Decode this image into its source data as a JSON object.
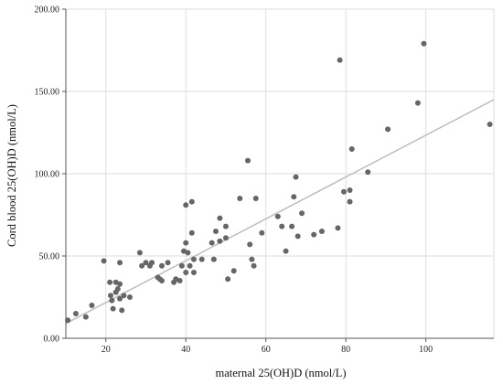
{
  "chart_data": {
    "type": "scatter",
    "xlabel": "maternal 25(OH)D (nmol/L)",
    "ylabel": "Cord blood 25(OH)D (nmol/L)",
    "xlim": [
      10,
      117
    ],
    "ylim": [
      0,
      200
    ],
    "x_ticks": [
      20,
      40,
      60,
      80,
      100
    ],
    "x_tick_labels": [
      "20",
      "40",
      "60",
      "80",
      "100"
    ],
    "y_ticks": [
      0,
      50,
      100,
      150,
      200
    ],
    "y_tick_labels": [
      "0.00",
      "50.00",
      "100.00",
      "150.00",
      "200.00"
    ],
    "grid": true,
    "point_color": "#666666",
    "fit_line_color": "#bdbdbd",
    "fit_line": {
      "x": [
        10,
        117
      ],
      "y": [
        9,
        145
      ]
    },
    "points": [
      {
        "x": 10.5,
        "y": 11
      },
      {
        "x": 12.5,
        "y": 15
      },
      {
        "x": 15,
        "y": 13
      },
      {
        "x": 16.5,
        "y": 20
      },
      {
        "x": 19.5,
        "y": 47
      },
      {
        "x": 21,
        "y": 34
      },
      {
        "x": 21.2,
        "y": 26
      },
      {
        "x": 21.5,
        "y": 23
      },
      {
        "x": 21.8,
        "y": 18
      },
      {
        "x": 22.5,
        "y": 34
      },
      {
        "x": 22.5,
        "y": 28
      },
      {
        "x": 23,
        "y": 30
      },
      {
        "x": 23.5,
        "y": 33
      },
      {
        "x": 23.5,
        "y": 46
      },
      {
        "x": 23.5,
        "y": 24
      },
      {
        "x": 24,
        "y": 17
      },
      {
        "x": 24.5,
        "y": 26
      },
      {
        "x": 26,
        "y": 25
      },
      {
        "x": 28.5,
        "y": 52
      },
      {
        "x": 29,
        "y": 44
      },
      {
        "x": 30,
        "y": 46
      },
      {
        "x": 31,
        "y": 44
      },
      {
        "x": 31.5,
        "y": 46
      },
      {
        "x": 33,
        "y": 37
      },
      {
        "x": 33.5,
        "y": 36
      },
      {
        "x": 34,
        "y": 35
      },
      {
        "x": 34,
        "y": 44
      },
      {
        "x": 35.5,
        "y": 46
      },
      {
        "x": 37,
        "y": 34
      },
      {
        "x": 37.5,
        "y": 36
      },
      {
        "x": 38.5,
        "y": 35
      },
      {
        "x": 39,
        "y": 44
      },
      {
        "x": 39.5,
        "y": 53
      },
      {
        "x": 40,
        "y": 81
      },
      {
        "x": 40,
        "y": 40
      },
      {
        "x": 40,
        "y": 58
      },
      {
        "x": 40.5,
        "y": 52
      },
      {
        "x": 41,
        "y": 44
      },
      {
        "x": 41.5,
        "y": 64
      },
      {
        "x": 41.5,
        "y": 83
      },
      {
        "x": 42,
        "y": 48
      },
      {
        "x": 42,
        "y": 40
      },
      {
        "x": 44,
        "y": 48
      },
      {
        "x": 46.5,
        "y": 58
      },
      {
        "x": 47,
        "y": 48
      },
      {
        "x": 47.5,
        "y": 65
      },
      {
        "x": 48.5,
        "y": 59
      },
      {
        "x": 48.5,
        "y": 73
      },
      {
        "x": 50,
        "y": 68
      },
      {
        "x": 50,
        "y": 61
      },
      {
        "x": 50.5,
        "y": 36
      },
      {
        "x": 52,
        "y": 41
      },
      {
        "x": 53.5,
        "y": 85
      },
      {
        "x": 55.5,
        "y": 108
      },
      {
        "x": 56,
        "y": 57
      },
      {
        "x": 56.5,
        "y": 48
      },
      {
        "x": 57,
        "y": 44
      },
      {
        "x": 57.5,
        "y": 85
      },
      {
        "x": 59,
        "y": 64
      },
      {
        "x": 63,
        "y": 74
      },
      {
        "x": 64,
        "y": 68
      },
      {
        "x": 65,
        "y": 53
      },
      {
        "x": 66.5,
        "y": 68
      },
      {
        "x": 67,
        "y": 86
      },
      {
        "x": 67.5,
        "y": 98
      },
      {
        "x": 68,
        "y": 62
      },
      {
        "x": 69,
        "y": 76
      },
      {
        "x": 72,
        "y": 63
      },
      {
        "x": 74,
        "y": 65
      },
      {
        "x": 78,
        "y": 67
      },
      {
        "x": 78.5,
        "y": 169
      },
      {
        "x": 79.5,
        "y": 89
      },
      {
        "x": 81,
        "y": 90
      },
      {
        "x": 81,
        "y": 83
      },
      {
        "x": 81.5,
        "y": 115
      },
      {
        "x": 85.5,
        "y": 101
      },
      {
        "x": 90.5,
        "y": 127
      },
      {
        "x": 98,
        "y": 143
      },
      {
        "x": 99.5,
        "y": 179
      },
      {
        "x": 116,
        "y": 130
      }
    ]
  }
}
